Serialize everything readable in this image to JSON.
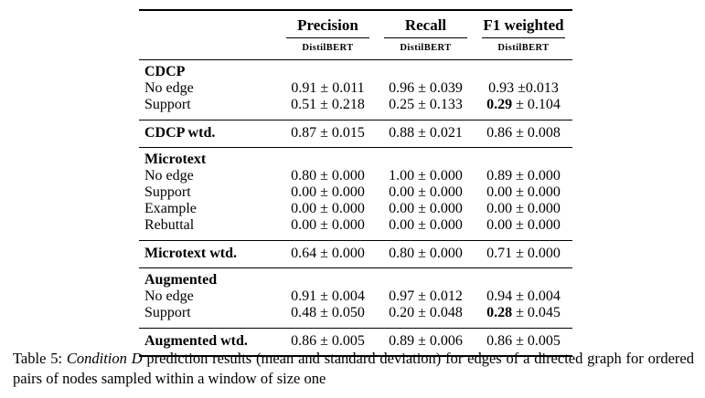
{
  "table": {
    "column_headers": [
      "Precision",
      "Recall",
      "F1 weighted"
    ],
    "model_subheaders": [
      "DistilBERT",
      "DistilBERT",
      "DistilBERT"
    ],
    "sections": [
      {
        "header": "CDCP",
        "rows": [
          {
            "label": "No edge",
            "cells": [
              {
                "bold": "",
                "text": "0.91 ± 0.011"
              },
              {
                "bold": "",
                "text": "0.96 ± 0.039"
              },
              {
                "bold": "",
                "text": "0.93 ±0.013"
              }
            ]
          },
          {
            "label": "Support",
            "cells": [
              {
                "bold": "",
                "text": "0.51 ± 0.218"
              },
              {
                "bold": "",
                "text": "0.25 ± 0.133"
              },
              {
                "bold": "0.29",
                "text": " ± 0.104"
              }
            ]
          }
        ],
        "summary": {
          "label": "CDCP wtd.",
          "cells": [
            {
              "bold": "",
              "text": "0.87 ± 0.015"
            },
            {
              "bold": "",
              "text": "0.88 ± 0.021"
            },
            {
              "bold": "",
              "text": "0.86 ± 0.008"
            }
          ]
        }
      },
      {
        "header": "Microtext",
        "rows": [
          {
            "label": "No edge",
            "cells": [
              {
                "bold": "",
                "text": "0.80 ± 0.000"
              },
              {
                "bold": "",
                "text": "1.00 ± 0.000"
              },
              {
                "bold": "",
                "text": "0.89 ± 0.000"
              }
            ]
          },
          {
            "label": "Support",
            "cells": [
              {
                "bold": "",
                "text": "0.00 ± 0.000"
              },
              {
                "bold": "",
                "text": "0.00 ± 0.000"
              },
              {
                "bold": "",
                "text": "0.00 ± 0.000"
              }
            ]
          },
          {
            "label": "Example",
            "cells": [
              {
                "bold": "",
                "text": "0.00 ± 0.000"
              },
              {
                "bold": "",
                "text": "0.00 ± 0.000"
              },
              {
                "bold": "",
                "text": "0.00 ± 0.000"
              }
            ]
          },
          {
            "label": "Rebuttal",
            "cells": [
              {
                "bold": "",
                "text": "0.00 ± 0.000"
              },
              {
                "bold": "",
                "text": "0.00 ± 0.000"
              },
              {
                "bold": "",
                "text": "0.00 ± 0.000"
              }
            ]
          }
        ],
        "summary": {
          "label": "Microtext wtd.",
          "cells": [
            {
              "bold": "",
              "text": "0.64 ± 0.000"
            },
            {
              "bold": "",
              "text": "0.80 ± 0.000"
            },
            {
              "bold": "",
              "text": "0.71 ± 0.000"
            }
          ]
        }
      },
      {
        "header": "Augmented",
        "rows": [
          {
            "label": "No edge",
            "cells": [
              {
                "bold": "",
                "text": "0.91 ± 0.004"
              },
              {
                "bold": "",
                "text": "0.97 ± 0.012"
              },
              {
                "bold": "",
                "text": "0.94 ± 0.004"
              }
            ]
          },
          {
            "label": "Support",
            "cells": [
              {
                "bold": "",
                "text": "0.48 ± 0.050"
              },
              {
                "bold": "",
                "text": "0.20 ± 0.048"
              },
              {
                "bold": "0.28",
                "text": " ± 0.045"
              }
            ]
          }
        ],
        "summary": {
          "label": "Augmented wtd.",
          "cells": [
            {
              "bold": "",
              "text": "0.86 ± 0.005"
            },
            {
              "bold": "",
              "text": "0.89 ± 0.006"
            },
            {
              "bold": "",
              "text": "0.86 ± 0.005"
            }
          ]
        }
      }
    ]
  },
  "caption": {
    "prefix": "Table 5: ",
    "italic": "Condition D",
    "rest": " prediction results (mean and standard deviation) for edges of a directed graph for ordered pairs of nodes sampled within a window of size one"
  }
}
